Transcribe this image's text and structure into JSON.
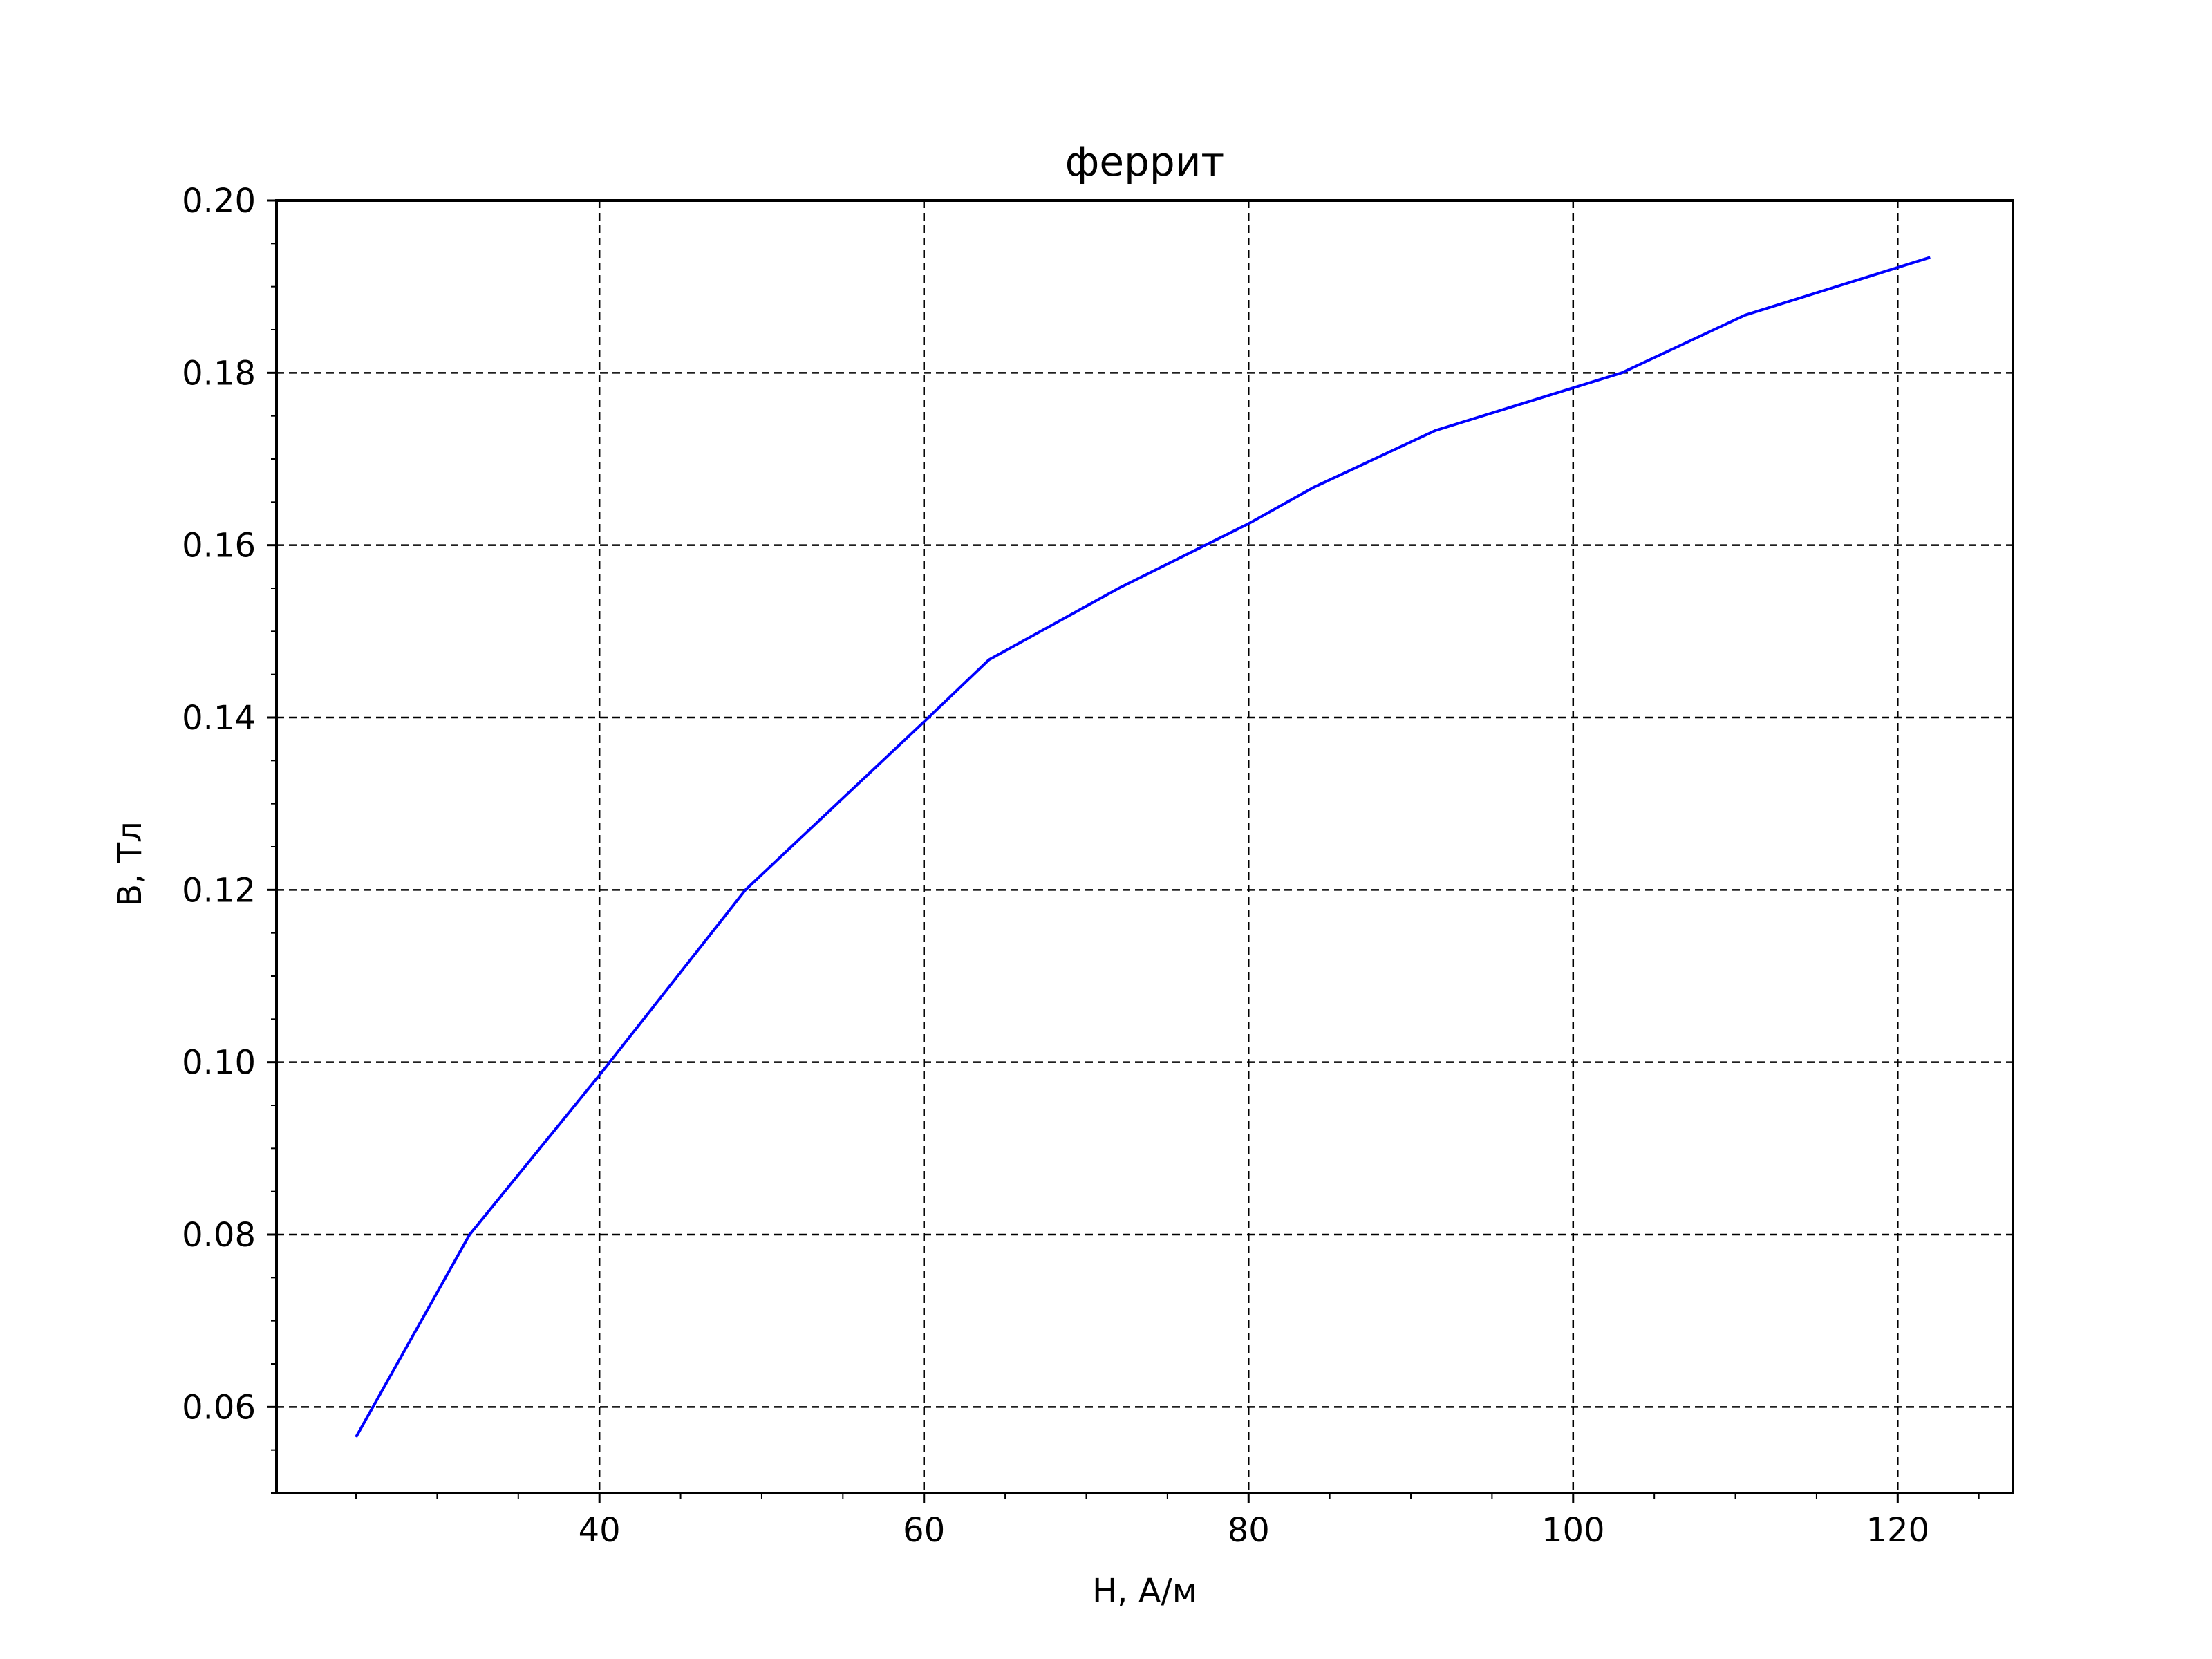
{
  "chart_data": {
    "type": "line",
    "title": "феррит",
    "xlabel": "H, А/м",
    "ylabel": "B, Тл",
    "xlim": [
      20.1,
      127.1
    ],
    "ylim": [
      0.05,
      0.2
    ],
    "xticks": [
      40,
      60,
      80,
      100,
      120
    ],
    "xtick_labels": [
      "40",
      "60",
      "80",
      "100",
      "120"
    ],
    "x_minor_step": 5,
    "yticks": [
      0.06,
      0.08,
      0.1,
      0.12,
      0.14,
      0.16,
      0.18,
      0.2
    ],
    "ytick_labels": [
      "0.06",
      "0.08",
      "0.10",
      "0.12",
      "0.14",
      "0.16",
      "0.18",
      "0.20"
    ],
    "y_minor_step": 0.005,
    "grid": true,
    "series": [
      {
        "color": "#0000ff",
        "x": [
          25.0,
          32.0,
          40.0,
          49.0,
          60.0,
          64.0,
          72.0,
          80.0,
          84.0,
          91.5,
          103.0,
          110.6,
          122.0
        ],
        "y": [
          0.0565,
          0.08,
          0.0985,
          0.12,
          0.1395,
          0.1467,
          0.155,
          0.1625,
          0.1667,
          0.1733,
          0.18,
          0.1867,
          0.1934
        ]
      }
    ]
  }
}
